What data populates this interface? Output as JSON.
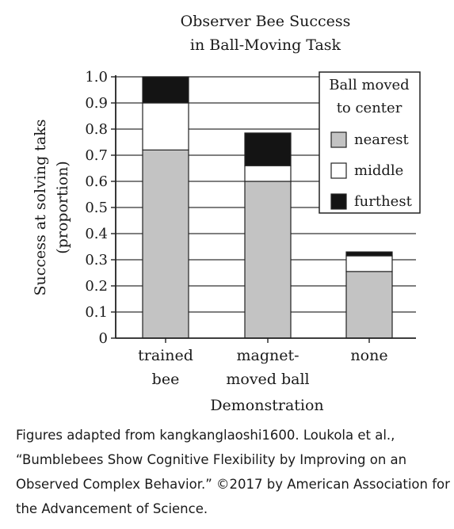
{
  "chart_data": {
    "type": "bar",
    "stacked": true,
    "title_lines": [
      "Observer Bee Success",
      "in Ball-Moving Task"
    ],
    "xlabel": "Demonstration",
    "ylabel_lines": [
      "Success at solving taks",
      "(proportion)"
    ],
    "categories": [
      {
        "name": "trained bee",
        "lines": [
          "trained",
          "bee"
        ]
      },
      {
        "name": "magnet-moved ball",
        "lines": [
          "magnet-",
          "moved ball"
        ]
      },
      {
        "name": "none",
        "lines": [
          "none"
        ]
      }
    ],
    "series": [
      {
        "name": "nearest",
        "values": [
          0.72,
          0.6,
          0.255
        ],
        "color": "#c3c3c3"
      },
      {
        "name": "middle",
        "values": [
          0.18,
          0.06,
          0.06
        ],
        "color": "#ffffff"
      },
      {
        "name": "furthest",
        "values": [
          0.1,
          0.125,
          0.015
        ],
        "color": "#141414"
      }
    ],
    "ylim": [
      0,
      1.0
    ],
    "yticks": [
      "0",
      "0.1",
      "0.2",
      "0.3",
      "0.4",
      "0.5",
      "0.6",
      "0.7",
      "0.8",
      "0.9",
      "1.0"
    ],
    "grid": true,
    "legend": {
      "title_lines": [
        "Ball moved",
        "to center"
      ],
      "position": "top-right"
    }
  },
  "caption": {
    "lines": [
      "Figures adapted from kangkanglaoshi1600. Loukola et al.,",
      "“Bumblebees Show Cognitive Flexibility by Improving on an",
      "Observed Complex Behavior.” ©2017 by American Association for",
      "the Advancement of Science."
    ]
  }
}
